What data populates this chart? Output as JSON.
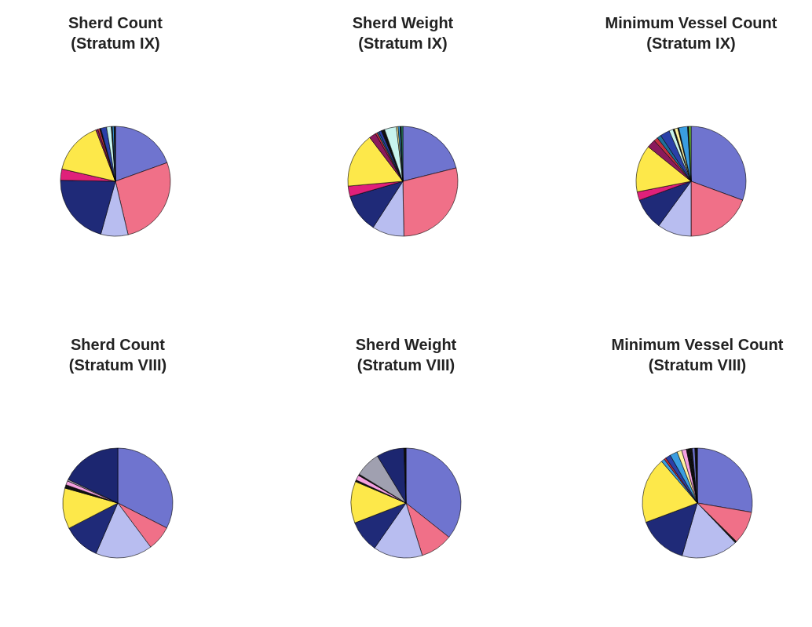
{
  "chart_data": [
    {
      "type": "pie",
      "title": "Sherd Count",
      "subtitle": "(Stratum IX)",
      "categories": [
        null,
        null,
        null,
        null,
        null,
        null,
        null,
        null,
        null,
        null,
        null,
        null,
        null,
        null
      ],
      "values": [
        19.5,
        26.8,
        8,
        21,
        3.3,
        15.6,
        0.6,
        0.6,
        0.3,
        1.7,
        1.4,
        0.3,
        0.5,
        0.4
      ],
      "colors": [
        "#6f74cf",
        "#f07088",
        "#b8bdf0",
        "#1f2a78",
        "#e0207a",
        "#fde84a",
        "#8a1a5c",
        "#c23040",
        "#101010",
        "#2a40a8",
        "#c8f4ee",
        "#101010",
        "#3a9de0",
        "#101010"
      ]
    },
    {
      "type": "pie",
      "title": "Sherd Weight",
      "subtitle": "(Stratum IX)",
      "categories": [
        null,
        null,
        null,
        null,
        null,
        null,
        null,
        null,
        null,
        null,
        null,
        null,
        null,
        null,
        null,
        null
      ],
      "values": [
        21.1,
        28.6,
        9.4,
        11.4,
        3.1,
        16.1,
        2,
        0.6,
        0.5,
        0.8,
        1,
        3.5,
        0.5,
        0.6,
        0.3,
        0.5
      ],
      "colors": [
        "#6f74cf",
        "#f07088",
        "#b8bdf0",
        "#1f2a78",
        "#e0207a",
        "#fde84a",
        "#8a1a5c",
        "#c23040",
        "#20709a",
        "#2a40a8",
        "#101010",
        "#c8f4ee",
        "#fff4a0",
        "#3a9de0",
        "#101010",
        "#2e8b6a"
      ]
    },
    {
      "type": "pie",
      "title": "Minimum Vessel Count",
      "subtitle": "(Stratum IX)",
      "categories": [
        null,
        null,
        null,
        null,
        null,
        null,
        null,
        null,
        null,
        null,
        null,
        null,
        null,
        null,
        null,
        null,
        null
      ],
      "values": [
        30.6,
        19.4,
        10,
        9.4,
        2.5,
        13.9,
        2.5,
        1.2,
        1.2,
        2.8,
        1.2,
        0.4,
        1,
        0.3,
        2.6,
        0.3,
        0.7
      ],
      "colors": [
        "#6f74cf",
        "#f07088",
        "#b8bdf0",
        "#1f2a78",
        "#e0207a",
        "#fde84a",
        "#8a1a5c",
        "#c23040",
        "#20709a",
        "#2a40a8",
        "#c8f4ee",
        "#101010",
        "#fff4a0",
        "#101010",
        "#3a9de0",
        "#101010",
        "#70c040"
      ]
    },
    {
      "type": "pie",
      "title": "Sherd Count",
      "subtitle": "(Stratum VIII)",
      "categories": [
        null,
        null,
        null,
        null,
        null,
        null,
        null,
        null,
        null
      ],
      "values": [
        32.5,
        7.3,
        16.7,
        10.9,
        12,
        1,
        1.2,
        0.5,
        17.9
      ],
      "colors": [
        "#6f74cf",
        "#f07088",
        "#b8bdf0",
        "#1f2a78",
        "#fde84a",
        "#101010",
        "#f5a0e0",
        "#a0a0b0",
        "#1c2670"
      ]
    },
    {
      "type": "pie",
      "title": "Sherd Weight",
      "subtitle": "(Stratum VIII)",
      "categories": [
        null,
        null,
        null,
        null,
        null,
        null,
        null,
        null,
        null,
        null,
        null
      ],
      "values": [
        35.7,
        9.5,
        14.5,
        9.4,
        12.3,
        0.5,
        1.5,
        0.4,
        7.5,
        8.1,
        0.6
      ],
      "colors": [
        "#6f74cf",
        "#f07088",
        "#b8bdf0",
        "#1f2a78",
        "#fde84a",
        "#101010",
        "#f5a0e0",
        "#101010",
        "#a0a0b0",
        "#1c2670",
        "#101010"
      ]
    },
    {
      "type": "pie",
      "title": "Minimum Vessel Count",
      "subtitle": "(Stratum VIII)",
      "categories": [
        null,
        null,
        null,
        null,
        null,
        null,
        null,
        null,
        null,
        null,
        null,
        null,
        null,
        null,
        null,
        null,
        null
      ],
      "values": [
        27.7,
        9.7,
        0.5,
        16.6,
        14.8,
        19.4,
        1,
        0.6,
        1.5,
        2.2,
        1.4,
        1.4,
        0.6,
        0.6,
        0.5,
        0.8,
        0.7
      ],
      "colors": [
        "#6f74cf",
        "#f07088",
        "#101010",
        "#b8bdf0",
        "#1f2a78",
        "#fde84a",
        "#3a9de0",
        "#c23040",
        "#2a40a8",
        "#3a9de0",
        "#fff4a0",
        "#f5a0e0",
        "#101010",
        "#101010",
        "#101010",
        "#6f74cf",
        "#101010"
      ]
    }
  ]
}
